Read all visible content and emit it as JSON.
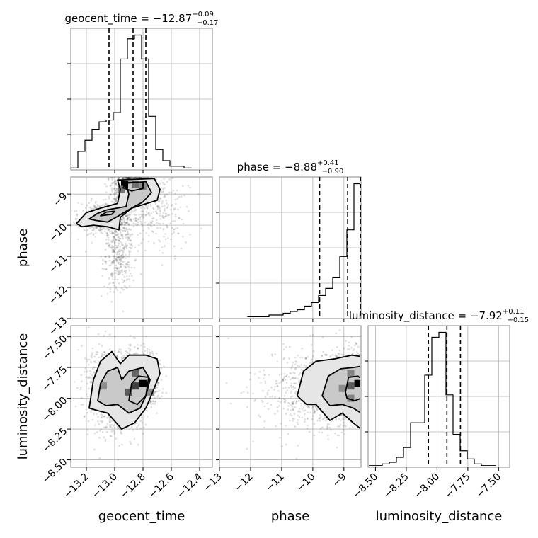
{
  "chart_data": {
    "type": "corner",
    "parameters": [
      {
        "name": "geocent_time",
        "label": "geocent_time",
        "title": "geocent_time = −12.87",
        "title_median": "−12.87",
        "title_plus": "+0.09",
        "title_minus": "−0.17",
        "range": [
          -13.31,
          -12.31
        ],
        "ticks": [
          -13.2,
          -13.0,
          -12.8,
          -12.6,
          -12.4
        ],
        "tick_labels": [
          "−13.2",
          "−13.0",
          "−12.8",
          "−12.6",
          "−12.4"
        ],
        "quantiles": [
          -13.04,
          -12.87,
          -12.78
        ],
        "histogram": {
          "edges_start": -13.31,
          "bin_width": 0.05,
          "counts": [
            1,
            10,
            16,
            22,
            26,
            27,
            31,
            60,
            71,
            73,
            60,
            29,
            11,
            5,
            2,
            2,
            1,
            0,
            0,
            0
          ]
        }
      },
      {
        "name": "phase",
        "label": "phase",
        "title": "phase = −8.88",
        "title_median": "−8.88",
        "title_plus": "+0.41",
        "title_minus": "−0.90",
        "range": [
          -13.0,
          -8.45
        ],
        "ticks": [
          -13,
          -12,
          -11,
          -10,
          -9
        ],
        "tick_labels": [
          "−13",
          "−12",
          "−11",
          "−10",
          "−9"
        ],
        "quantiles": [
          -9.78,
          -8.88,
          -8.47
        ],
        "histogram": {
          "edges_start": -13.0,
          "bin_width": 0.2275,
          "counts": [
            0,
            0,
            0,
            0,
            1,
            1,
            1,
            2,
            2,
            3,
            4,
            5,
            7,
            9,
            13,
            17,
            23,
            35,
            50,
            76
          ]
        }
      },
      {
        "name": "luminosity_distance",
        "label": "luminosity_distance",
        "title": "luminosity_distance = −7.92",
        "title_median": "−7.92",
        "title_plus": "+0.11",
        "title_minus": "−0.15",
        "range": [
          -8.56,
          -7.41
        ],
        "ticks": [
          -8.5,
          -8.25,
          -8.0,
          -7.75,
          -7.5
        ],
        "tick_labels": [
          "−8.50",
          "−8.25",
          "−8.00",
          "−7.75",
          "−7.50"
        ],
        "quantiles": [
          -8.07,
          -7.92,
          -7.81
        ],
        "histogram": {
          "edges_start": -8.56,
          "bin_width": 0.0575,
          "counts": [
            1,
            1,
            2,
            3,
            6,
            12,
            27,
            27,
            56,
            79,
            82,
            44,
            20,
            10,
            5,
            2,
            1,
            1,
            0,
            0
          ]
        }
      }
    ],
    "pairs": [
      {
        "x": "geocent_time",
        "y": "phase",
        "modes": [
          {
            "cx": -12.88,
            "cy": -8.75,
            "sx": 0.06,
            "sy": 0.3,
            "weight": 0.55
          },
          {
            "cx": -13.05,
            "cy": -9.8,
            "sx": 0.1,
            "sy": 0.25,
            "weight": 0.22
          },
          {
            "cx": -12.97,
            "cy": -11.0,
            "sx": 0.05,
            "sy": 0.55,
            "weight": 0.13
          },
          {
            "cx": -12.7,
            "cy": -9.6,
            "sx": 0.12,
            "sy": 0.6,
            "weight": 0.1
          }
        ],
        "density_peaks": [
          {
            "x": -12.93,
            "y": -8.7,
            "level": 1.0
          },
          {
            "x": -12.85,
            "y": -8.7,
            "level": 0.45
          },
          {
            "x": -12.95,
            "y": -8.85,
            "level": 0.4
          },
          {
            "x": -12.8,
            "y": -8.75,
            "level": 0.3
          }
        ],
        "contours": [
          [
            [
              -13.27,
              -9.95
            ],
            [
              -13.2,
              -9.6
            ],
            [
              -13.1,
              -9.45
            ],
            [
              -12.98,
              -9.3
            ],
            [
              -12.96,
              -8.85
            ],
            [
              -12.98,
              -8.55
            ],
            [
              -12.72,
              -8.5
            ],
            [
              -12.68,
              -8.85
            ],
            [
              -12.7,
              -9.2
            ],
            [
              -12.88,
              -9.45
            ],
            [
              -12.96,
              -9.75
            ],
            [
              -12.97,
              -10.15
            ],
            [
              -13.05,
              -10.05
            ],
            [
              -13.15,
              -10.0
            ],
            [
              -13.23,
              -10.05
            ]
          ],
          [
            [
              -13.18,
              -9.8
            ],
            [
              -13.12,
              -9.62
            ],
            [
              -13.05,
              -9.5
            ],
            [
              -12.92,
              -9.4
            ],
            [
              -12.9,
              -9.0
            ],
            [
              -12.92,
              -8.65
            ],
            [
              -12.78,
              -8.6
            ],
            [
              -12.74,
              -8.95
            ],
            [
              -12.8,
              -9.25
            ],
            [
              -12.9,
              -9.5
            ],
            [
              -12.98,
              -9.72
            ],
            [
              -13.05,
              -9.9
            ],
            [
              -13.13,
              -9.85
            ]
          ],
          [
            [
              -13.1,
              -9.7
            ],
            [
              -13.06,
              -9.58
            ],
            [
              -13.0,
              -9.55
            ],
            [
              -13.02,
              -9.65
            ]
          ],
          [
            [
              -12.94,
              -8.8
            ],
            [
              -12.92,
              -8.62
            ],
            [
              -12.8,
              -8.62
            ],
            [
              -12.8,
              -8.82
            ],
            [
              -12.88,
              -8.9
            ]
          ]
        ]
      },
      {
        "x": "geocent_time",
        "y": "luminosity_distance",
        "modes": [
          {
            "cx": -12.82,
            "cy": -7.86,
            "sx": 0.06,
            "sy": 0.11,
            "weight": 0.5
          },
          {
            "cx": -13.05,
            "cy": -7.92,
            "sx": 0.08,
            "sy": 0.16,
            "weight": 0.28
          },
          {
            "cx": -12.92,
            "cy": -7.98,
            "sx": 0.06,
            "sy": 0.14,
            "weight": 0.22
          }
        ],
        "density_peaks": [
          {
            "x": -12.8,
            "y": -7.88,
            "level": 1.0
          },
          {
            "x": -12.85,
            "y": -7.9,
            "level": 0.7
          },
          {
            "x": -12.85,
            "y": -7.8,
            "level": 0.5
          },
          {
            "x": -12.9,
            "y": -7.95,
            "level": 0.55
          },
          {
            "x": -13.08,
            "y": -7.9,
            "level": 0.3
          },
          {
            "x": -12.75,
            "y": -7.95,
            "level": 0.3
          }
        ],
        "contours": [
          [
            [
              -13.18,
              -8.08
            ],
            [
              -13.15,
              -7.85
            ],
            [
              -13.1,
              -7.7
            ],
            [
              -13.02,
              -7.62
            ],
            [
              -12.96,
              -7.72
            ],
            [
              -12.9,
              -7.65
            ],
            [
              -12.78,
              -7.65
            ],
            [
              -12.7,
              -7.68
            ],
            [
              -12.68,
              -7.8
            ],
            [
              -12.75,
              -8.0
            ],
            [
              -12.78,
              -8.08
            ],
            [
              -12.86,
              -8.2
            ],
            [
              -12.95,
              -8.25
            ],
            [
              -13.05,
              -8.12
            ],
            [
              -13.12,
              -8.1
            ]
          ],
          [
            [
              -13.12,
              -8.02
            ],
            [
              -13.1,
              -7.88
            ],
            [
              -13.05,
              -7.78
            ],
            [
              -12.98,
              -7.75
            ],
            [
              -12.95,
              -7.85
            ],
            [
              -12.9,
              -7.78
            ],
            [
              -12.8,
              -7.75
            ],
            [
              -12.75,
              -7.85
            ],
            [
              -12.78,
              -7.98
            ],
            [
              -12.82,
              -8.08
            ],
            [
              -12.9,
              -8.12
            ],
            [
              -12.98,
              -8.05
            ],
            [
              -13.06,
              -8.06
            ]
          ],
          [
            [
              -12.9,
              -8.02
            ],
            [
              -12.88,
              -7.88
            ],
            [
              -12.83,
              -7.82
            ],
            [
              -12.76,
              -7.83
            ],
            [
              -12.78,
              -7.98
            ],
            [
              -12.84,
              -8.05
            ]
          ]
        ]
      },
      {
        "x": "phase",
        "y": "luminosity_distance",
        "modes": [
          {
            "cx": -8.75,
            "cy": -7.88,
            "sx": 0.4,
            "sy": 0.12,
            "weight": 0.6
          },
          {
            "cx": -9.4,
            "cy": -7.93,
            "sx": 0.7,
            "sy": 0.15,
            "weight": 0.3
          },
          {
            "cx": -10.4,
            "cy": -7.95,
            "sx": 0.9,
            "sy": 0.18,
            "weight": 0.1
          }
        ],
        "density_peaks": [
          {
            "x": -8.55,
            "y": -7.88,
            "level": 1.0
          },
          {
            "x": -8.78,
            "y": -7.9,
            "level": 0.55
          },
          {
            "x": -8.78,
            "y": -7.8,
            "level": 0.35
          },
          {
            "x": -8.78,
            "y": -8.0,
            "level": 0.35
          },
          {
            "x": -9.05,
            "y": -7.92,
            "level": 0.3
          }
        ],
        "contours": [
          [
            [
              -10.5,
              -7.98
            ],
            [
              -10.3,
              -7.78
            ],
            [
              -9.9,
              -7.7
            ],
            [
              -9.3,
              -7.68
            ],
            [
              -8.75,
              -7.65
            ],
            [
              -8.45,
              -7.66
            ],
            [
              -8.45,
              -8.25
            ],
            [
              -8.7,
              -8.2
            ],
            [
              -9.05,
              -8.12
            ],
            [
              -9.45,
              -8.18
            ],
            [
              -9.9,
              -8.05
            ],
            [
              -10.2,
              -8.05
            ]
          ],
          [
            [
              -9.7,
              -7.98
            ],
            [
              -9.5,
              -7.82
            ],
            [
              -9.1,
              -7.76
            ],
            [
              -8.7,
              -7.75
            ],
            [
              -8.45,
              -7.74
            ],
            [
              -8.45,
              -8.12
            ],
            [
              -8.7,
              -8.08
            ],
            [
              -9.05,
              -8.05
            ],
            [
              -9.45,
              -8.06
            ]
          ],
          [
            [
              -8.95,
              -7.95
            ],
            [
              -8.85,
              -7.83
            ],
            [
              -8.55,
              -7.82
            ],
            [
              -8.45,
              -7.84
            ],
            [
              -8.45,
              -8.0
            ],
            [
              -8.65,
              -8.02
            ],
            [
              -8.9,
              -8.0
            ]
          ]
        ]
      }
    ],
    "grid": true,
    "quantile_style": "dashed"
  }
}
